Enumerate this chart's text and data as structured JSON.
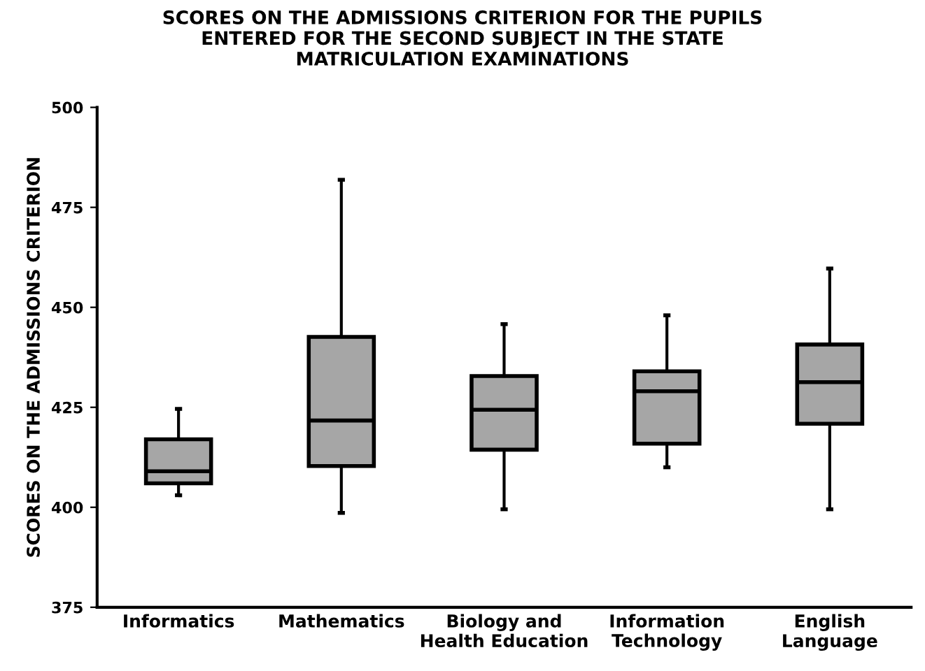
{
  "chart_data": {
    "type": "box",
    "title": "SCORES ON THE ADMISSIONS CRITERION FOR THE PUPILS\nENTERED FOR THE SECOND SUBJECT IN THE STATE\nMATRICULATION EXAMINATIONS",
    "ylabel": "SCORES ON THE ADMISSIONS CRITERION",
    "categories": [
      "Informatics",
      "Mathematics",
      "Biology and\nHealth Education",
      "Information\nTechnology",
      "English\nLanguage"
    ],
    "boxes": [
      {
        "low": 403,
        "q1": 406,
        "median": 409,
        "q3": 417,
        "high": 424.6
      },
      {
        "low": 398.6,
        "q1": 410.3,
        "median": 421.7,
        "q3": 442.6,
        "high": 481.9
      },
      {
        "low": 399.5,
        "q1": 414.4,
        "median": 424.4,
        "q3": 432.8,
        "high": 445.8
      },
      {
        "low": 410,
        "q1": 415.9,
        "median": 429,
        "q3": 434,
        "high": 448
      },
      {
        "low": 399.5,
        "q1": 420.9,
        "median": 431.3,
        "q3": 440.7,
        "high": 459.7
      }
    ],
    "color": "#a6a6a6",
    "ylim": [
      375,
      500
    ],
    "yticks": [
      375,
      400,
      425,
      450,
      475,
      500
    ],
    "grid": false
  }
}
